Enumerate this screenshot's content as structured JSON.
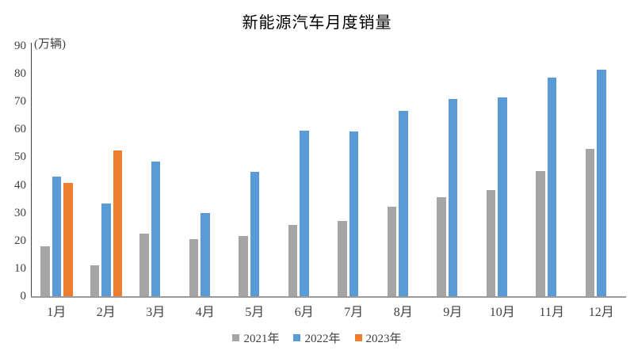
{
  "chart_data": {
    "type": "bar",
    "title": "新能源汽车月度销量",
    "ylabel": "(万辆)",
    "xlabel": "",
    "categories": [
      "1月",
      "2月",
      "3月",
      "4月",
      "5月",
      "6月",
      "7月",
      "8月",
      "9月",
      "10月",
      "11月",
      "12月"
    ],
    "series": [
      {
        "name": "2021年",
        "color": "#a5a5a5",
        "values": [
          17.9,
          11.0,
          22.6,
          20.6,
          21.7,
          25.6,
          27.1,
          32.1,
          35.7,
          38.3,
          45.0,
          53.1
        ]
      },
      {
        "name": "2022年",
        "color": "#5b9bd5",
        "values": [
          43.1,
          33.4,
          48.4,
          29.9,
          44.7,
          59.6,
          59.3,
          66.6,
          70.8,
          71.4,
          78.6,
          81.4
        ]
      },
      {
        "name": "2023年",
        "color": "#ed7d31",
        "values": [
          40.8,
          52.5,
          null,
          null,
          null,
          null,
          null,
          null,
          null,
          null,
          null,
          null
        ]
      }
    ],
    "ylim": [
      0,
      90
    ],
    "yticks": [
      0,
      10,
      20,
      30,
      40,
      50,
      60,
      70,
      80,
      90
    ],
    "grid": false,
    "legend_position": "bottom",
    "legend_entries": [
      "2021年",
      "2022年",
      "2023年"
    ]
  }
}
